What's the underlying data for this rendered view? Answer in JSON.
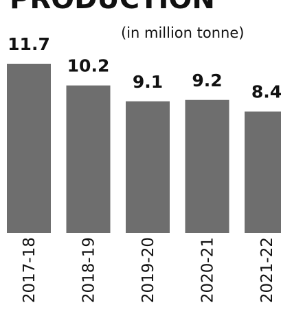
{
  "chart_data": {
    "type": "bar",
    "title": "PRODUCTION",
    "subtitle": "(in million tonne)",
    "categories": [
      "2017-18",
      "2018-19",
      "2019-20",
      "2020-21",
      "2021-22"
    ],
    "values": [
      11.7,
      10.2,
      9.1,
      9.2,
      8.4
    ],
    "color": "#6e6e6e"
  }
}
